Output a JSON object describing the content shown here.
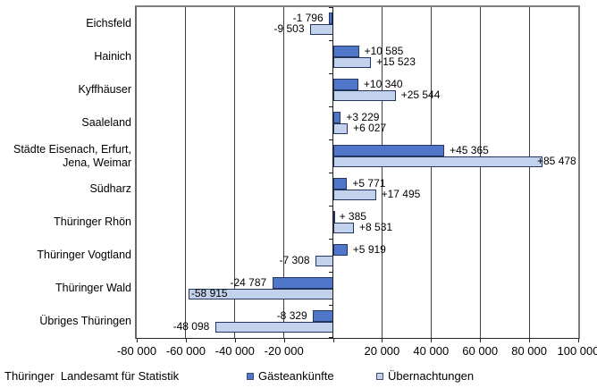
{
  "chart_data": {
    "type": "bar",
    "orientation": "horizontal",
    "title": "",
    "categories": [
      "Eichsfeld",
      "Hainich",
      "Kyffhäuser",
      "Saaleland",
      "Städte Eisenach, Erfurt,\nJena, Weimar",
      "Südharz",
      "Thüringer Rhön",
      "Thüringer Vogtland",
      "Thüringer Wald",
      "Übriges Thüringen"
    ],
    "series": [
      {
        "name": "Gästeankünfte",
        "color": "#4f76c8",
        "border_color": "#24355f",
        "values": [
          -1796,
          10585,
          10340,
          3229,
          45365,
          5771,
          385,
          5919,
          -24787,
          -8329
        ],
        "labels": [
          "-1 796",
          "+10 585",
          "+10 340",
          "+3 229",
          "+45 365",
          "+5 771",
          "+ 385",
          "+5 919",
          "-24 787",
          "-8 329"
        ]
      },
      {
        "name": "Übernachtungen",
        "color": "#c3d2ec",
        "border_color": "#24355f",
        "values": [
          -9503,
          15523,
          25544,
          6027,
          85478,
          17495,
          8531,
          -7308,
          -58915,
          -48098
        ],
        "labels": [
          "-9 503",
          "+15 523",
          "+25 544",
          "+6 027",
          "+85 478",
          "+17 495",
          "+8 531",
          "-7 308",
          "-58 915",
          "-48 098"
        ]
      }
    ],
    "xlim": [
      -80000,
      100000
    ],
    "xtick_step": 20000,
    "xticks": [
      {
        "value": -80000,
        "label": "-80 000"
      },
      {
        "value": -60000,
        "label": "-60 000"
      },
      {
        "value": -40000,
        "label": "-40 000"
      },
      {
        "value": -20000,
        "label": "-20 000"
      },
      {
        "value": 20000,
        "label": "20 000"
      },
      {
        "value": 40000,
        "label": "40 000"
      },
      {
        "value": 60000,
        "label": "60 000"
      },
      {
        "value": 80000,
        "label": "80 000"
      },
      {
        "value": 100000,
        "label": "100 000"
      }
    ],
    "grid": true,
    "legend_position": "bottom"
  },
  "footer": {
    "source": "Thüringer  Landesamt für Statistik"
  }
}
